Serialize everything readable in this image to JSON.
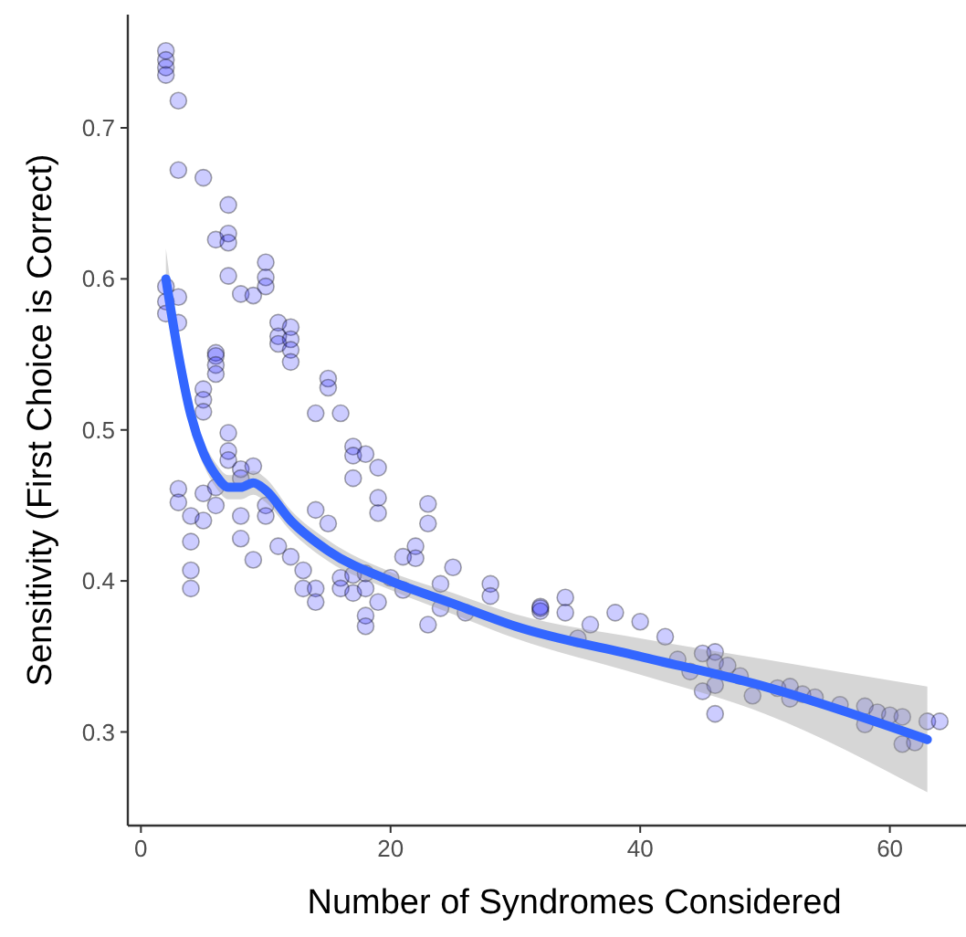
{
  "chart_data": {
    "type": "scatter",
    "xlabel": "Number of Syndromes Considered",
    "ylabel": "Sensitivity (First Choice is Correct)",
    "xlim": [
      -1.05,
      66.1
    ],
    "ylim": [
      0.238,
      0.775
    ],
    "xticks": [
      0,
      20,
      40,
      60
    ],
    "yticks": [
      0.3,
      0.4,
      0.5,
      0.6,
      0.7
    ],
    "grid": false,
    "series": [
      {
        "marker": "circle",
        "color": "#0000ff",
        "x": [
          2,
          2,
          2,
          2,
          3,
          3,
          5,
          7,
          6,
          7,
          7,
          7,
          8,
          9,
          10,
          10,
          10,
          11,
          11,
          11,
          12,
          12,
          12,
          12,
          2,
          2,
          2,
          3,
          3,
          6,
          6,
          6,
          6,
          5,
          5,
          5,
          7,
          7,
          7,
          8,
          8,
          9,
          3,
          3,
          4,
          4,
          4,
          4,
          5,
          5,
          6,
          6,
          8,
          8,
          9,
          10,
          10,
          11,
          12,
          13,
          13,
          14,
          14,
          15,
          15,
          14,
          16,
          17,
          17,
          17,
          18,
          19,
          19,
          19,
          14,
          15,
          16,
          16,
          17,
          17,
          18,
          18,
          18,
          18,
          19,
          21,
          20,
          21,
          23,
          23,
          22,
          22,
          25,
          28,
          28,
          24,
          24,
          23,
          26,
          32,
          32,
          32,
          34,
          34,
          35,
          36,
          38,
          40,
          42,
          43,
          44,
          45,
          45,
          46,
          46,
          46,
          46,
          47,
          48,
          49,
          51,
          52,
          52,
          53,
          54,
          56,
          58,
          58,
          59,
          60,
          61,
          61,
          62,
          63,
          64
        ],
        "values": [
          0.751,
          0.745,
          0.74,
          0.735,
          0.718,
          0.672,
          0.667,
          0.649,
          0.626,
          0.63,
          0.624,
          0.602,
          0.59,
          0.589,
          0.611,
          0.601,
          0.595,
          0.571,
          0.562,
          0.557,
          0.568,
          0.56,
          0.553,
          0.545,
          0.595,
          0.585,
          0.577,
          0.588,
          0.571,
          0.551,
          0.549,
          0.543,
          0.537,
          0.527,
          0.52,
          0.512,
          0.498,
          0.486,
          0.48,
          0.474,
          0.468,
          0.476,
          0.461,
          0.452,
          0.443,
          0.426,
          0.407,
          0.395,
          0.458,
          0.44,
          0.462,
          0.45,
          0.443,
          0.428,
          0.414,
          0.45,
          0.443,
          0.423,
          0.416,
          0.407,
          0.395,
          0.395,
          0.386,
          0.534,
          0.528,
          0.511,
          0.511,
          0.489,
          0.483,
          0.468,
          0.484,
          0.475,
          0.455,
          0.445,
          0.447,
          0.438,
          0.402,
          0.395,
          0.404,
          0.392,
          0.405,
          0.395,
          0.377,
          0.37,
          0.386,
          0.416,
          0.402,
          0.394,
          0.451,
          0.438,
          0.423,
          0.415,
          0.409,
          0.398,
          0.39,
          0.398,
          0.382,
          0.371,
          0.379,
          0.383,
          0.38,
          0.382,
          0.389,
          0.379,
          0.362,
          0.371,
          0.379,
          0.373,
          0.363,
          0.348,
          0.34,
          0.352,
          0.327,
          0.353,
          0.346,
          0.331,
          0.312,
          0.344,
          0.337,
          0.324,
          0.329,
          0.33,
          0.322,
          0.325,
          0.323,
          0.318,
          0.317,
          0.305,
          0.313,
          0.311,
          0.31,
          0.292,
          0.293,
          0.307,
          0.307
        ]
      },
      {
        "type": "line",
        "color": "#3366ff",
        "x": [
          2,
          3,
          4,
          5,
          6,
          7,
          8,
          9,
          10,
          12,
          15,
          20,
          25,
          30,
          40,
          50,
          63
        ],
        "values": [
          0.6,
          0.55,
          0.51,
          0.485,
          0.47,
          0.462,
          0.462,
          0.465,
          0.46,
          0.44,
          0.42,
          0.4,
          0.385,
          0.37,
          0.35,
          0.33,
          0.295
        ],
        "lower": [
          0.58,
          0.538,
          0.5,
          0.477,
          0.462,
          0.454,
          0.454,
          0.457,
          0.452,
          0.433,
          0.413,
          0.394,
          0.378,
          0.362,
          0.338,
          0.312,
          0.26
        ],
        "upper": [
          0.62,
          0.562,
          0.52,
          0.493,
          0.478,
          0.47,
          0.47,
          0.473,
          0.468,
          0.447,
          0.427,
          0.406,
          0.392,
          0.378,
          0.362,
          0.348,
          0.33
        ]
      }
    ]
  }
}
